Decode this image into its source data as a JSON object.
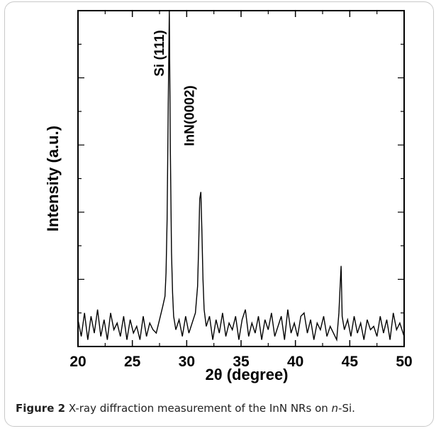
{
  "chart_data": {
    "type": "line",
    "title": "",
    "xlabel": "2θ (degree)",
    "ylabel": "Intensity (a.u.)",
    "xlim": [
      20,
      50
    ],
    "ylim": [
      0,
      100
    ],
    "xticks": [
      "20",
      "25",
      "30",
      "35",
      "40",
      "45",
      "50"
    ],
    "yticks_labeled": false,
    "grid": false,
    "annotations": [
      {
        "text": "Si (111)",
        "x": 28.4
      },
      {
        "text": "InN(0002)",
        "x": 31.3
      }
    ],
    "color": "#000000",
    "series": [
      {
        "x": [
          20.0,
          20.3,
          20.6,
          20.9,
          21.2,
          21.5,
          21.8,
          22.1,
          22.4,
          22.7,
          23.0,
          23.3,
          23.6,
          23.9,
          24.2,
          24.5,
          24.8,
          25.1,
          25.4,
          25.7,
          26.0,
          26.3,
          26.6,
          26.9,
          27.2,
          27.5,
          27.8,
          28.0,
          28.1,
          28.2,
          28.3,
          28.4,
          28.5,
          28.6,
          28.7,
          28.8,
          29.0,
          29.3,
          29.6,
          29.9,
          30.2,
          30.5,
          30.8,
          31.0,
          31.1,
          31.2,
          31.3,
          31.4,
          31.5,
          31.6,
          31.8,
          32.1,
          32.4,
          32.7,
          33.0,
          33.3,
          33.6,
          33.9,
          34.2,
          34.5,
          34.8,
          35.1,
          35.4,
          35.7,
          36.0,
          36.3,
          36.6,
          36.9,
          37.2,
          37.5,
          37.8,
          38.1,
          38.4,
          38.7,
          39.0,
          39.3,
          39.6,
          39.9,
          40.2,
          40.5,
          40.8,
          41.1,
          41.4,
          41.7,
          42.0,
          42.3,
          42.6,
          42.9,
          43.2,
          43.5,
          43.8,
          44.0,
          44.1,
          44.2,
          44.3,
          44.5,
          44.8,
          45.1,
          45.4,
          45.7,
          46.0,
          46.3,
          46.6,
          46.9,
          47.2,
          47.5,
          47.8,
          48.1,
          48.4,
          48.7,
          49.0,
          49.3,
          49.6,
          50.0
        ],
        "y": [
          8,
          3,
          10,
          2,
          9,
          4,
          11,
          3,
          8,
          2,
          10,
          5,
          7,
          3,
          9,
          2,
          8,
          4,
          6,
          2,
          9,
          3,
          7,
          5,
          4,
          8,
          12,
          15,
          22,
          38,
          72,
          100,
          58,
          28,
          16,
          9,
          5,
          8,
          3,
          9,
          4,
          7,
          10,
          18,
          30,
          44,
          46,
          34,
          20,
          11,
          6,
          9,
          2,
          8,
          4,
          10,
          3,
          7,
          5,
          9,
          2,
          8,
          11,
          3,
          7,
          4,
          9,
          2,
          8,
          5,
          10,
          3,
          6,
          9,
          2,
          11,
          4,
          7,
          3,
          9,
          10,
          4,
          8,
          2,
          7,
          5,
          9,
          3,
          6,
          4,
          2,
          10,
          17,
          24,
          9,
          5,
          8,
          3,
          9,
          4,
          7,
          2,
          8,
          5,
          6,
          3,
          9,
          4,
          8,
          2,
          10,
          5,
          7,
          3
        ]
      }
    ]
  },
  "caption": {
    "label": "Figure 2",
    "text_before": " X-ray diffraction measurement of the InN NRs on ",
    "italic": "n",
    "text_after": "-Si."
  }
}
